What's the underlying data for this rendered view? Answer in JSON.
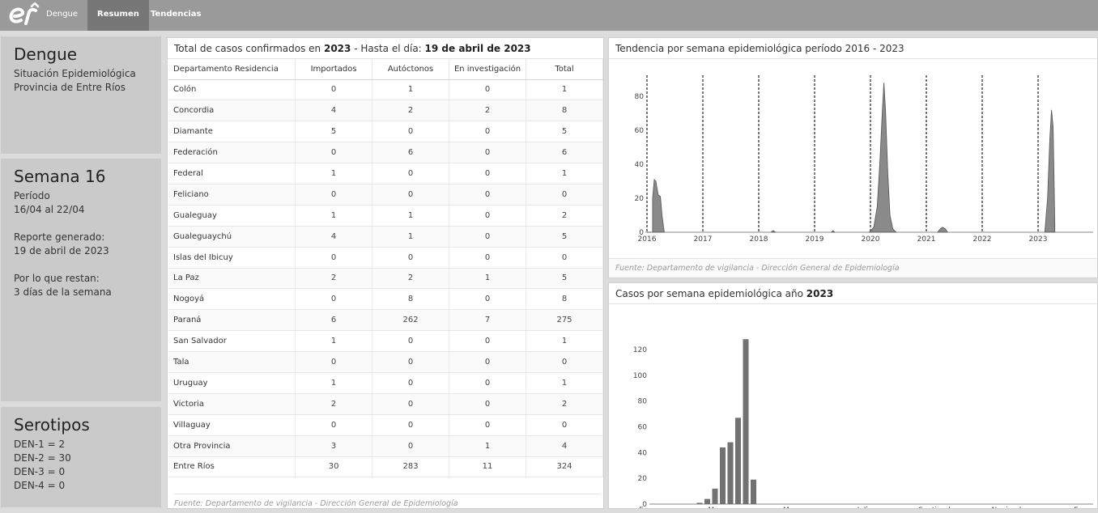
{
  "nav": {
    "brand": "Dengue",
    "tabs": [
      "Resumen",
      "Tendencias"
    ]
  },
  "info": {
    "title": "Dengue",
    "subtitle1": "Situación Epidemiológica",
    "subtitle2": "Provincia de Entre Ríos"
  },
  "week": {
    "title": "Semana 16",
    "period_label": "Período",
    "period_value": "16/04 al 22/04",
    "report_label": "Reporte generado:",
    "report_value": "19 de abril de 2023",
    "remaining_label": "Por lo que restan:",
    "remaining_value": "3 días de la semana"
  },
  "serotypes": {
    "title": "Serotipos",
    "items": [
      "DEN-1 = 2",
      "DEN-2 = 30",
      "DEN-3 = 0",
      "DEN-4 = 0"
    ]
  },
  "table_panel": {
    "title_prefix": "Total de casos confirmados en ",
    "year": "2023",
    "title_mid": " - Hasta el día: ",
    "date": "19 de abril de 2023",
    "footnote": "Fuente: Departamento de vigilancia - Dirección General de Epidemiología",
    "headers": [
      "Departamento Residencia",
      "Importados",
      "Autóctonos",
      "En investigación",
      "Total"
    ],
    "rows": [
      [
        "Colón",
        "0",
        "1",
        "0",
        "1"
      ],
      [
        "Concordia",
        "4",
        "2",
        "2",
        "8"
      ],
      [
        "Diamante",
        "5",
        "0",
        "0",
        "5"
      ],
      [
        "Federación",
        "0",
        "6",
        "0",
        "6"
      ],
      [
        "Federal",
        "1",
        "0",
        "0",
        "1"
      ],
      [
        "Feliciano",
        "0",
        "0",
        "0",
        "0"
      ],
      [
        "Gualeguay",
        "1",
        "1",
        "0",
        "2"
      ],
      [
        "Gualeguaychú",
        "4",
        "1",
        "0",
        "5"
      ],
      [
        "Islas del Ibicuy",
        "0",
        "0",
        "0",
        "0"
      ],
      [
        "La Paz",
        "2",
        "2",
        "1",
        "5"
      ],
      [
        "Nogoyá",
        "0",
        "8",
        "0",
        "8"
      ],
      [
        "Paraná",
        "6",
        "262",
        "7",
        "275"
      ],
      [
        "San Salvador",
        "1",
        "0",
        "0",
        "1"
      ],
      [
        "Tala",
        "0",
        "0",
        "0",
        "0"
      ],
      [
        "Uruguay",
        "1",
        "0",
        "0",
        "1"
      ],
      [
        "Victoria",
        "2",
        "0",
        "0",
        "2"
      ],
      [
        "Villaguay",
        "0",
        "0",
        "0",
        "0"
      ],
      [
        "Otra Provincia",
        "3",
        "0",
        "1",
        "4"
      ],
      [
        "Entre Ríos",
        "30",
        "283",
        "11",
        "324"
      ]
    ]
  },
  "trend_panel": {
    "title": "Tendencia por semana epidemiológica período 2016 - 2023",
    "footnote": "Fuente: Departamento de vigilancia - Dirección General de Epidemiología"
  },
  "weekly_panel": {
    "title_prefix": "Casos por semana epidemiológica año ",
    "year": "2023"
  },
  "chart_data": [
    {
      "type": "area",
      "x_unit": "year",
      "xticks": [
        "2016",
        "2017",
        "2018",
        "2019",
        "2020",
        "2021",
        "2022",
        "2023"
      ],
      "ylim": [
        0,
        90
      ],
      "yticks": [
        0,
        20,
        40,
        60,
        80
      ],
      "year_dividers": [
        2016,
        2017,
        2018,
        2019,
        2020,
        2021,
        2022,
        2023
      ],
      "series": [
        {
          "points": [
            [
              2016.0,
              0
            ],
            [
              2016.08,
              0
            ],
            [
              2016.1,
              20
            ],
            [
              2016.13,
              31
            ],
            [
              2016.16,
              30
            ],
            [
              2016.2,
              22
            ],
            [
              2016.24,
              21
            ],
            [
              2016.27,
              10
            ],
            [
              2016.31,
              0
            ],
            [
              2018.22,
              0
            ],
            [
              2018.26,
              1
            ],
            [
              2018.3,
              0
            ],
            [
              2019.3,
              0
            ],
            [
              2019.33,
              1
            ],
            [
              2019.36,
              0
            ],
            [
              2019.98,
              0
            ],
            [
              2020.06,
              3
            ],
            [
              2020.12,
              15
            ],
            [
              2020.17,
              42
            ],
            [
              2020.21,
              70
            ],
            [
              2020.24,
              88
            ],
            [
              2020.27,
              72
            ],
            [
              2020.31,
              35
            ],
            [
              2020.35,
              10
            ],
            [
              2020.4,
              2
            ],
            [
              2020.46,
              0
            ],
            [
              2021.2,
              0
            ],
            [
              2021.25,
              2
            ],
            [
              2021.29,
              3
            ],
            [
              2021.34,
              2
            ],
            [
              2021.38,
              0
            ],
            [
              2023.12,
              0
            ],
            [
              2023.17,
              20
            ],
            [
              2023.21,
              55
            ],
            [
              2023.24,
              72
            ],
            [
              2023.27,
              62
            ],
            [
              2023.3,
              5
            ]
          ]
        }
      ]
    },
    {
      "type": "bar",
      "xticks": [
        "Enero",
        "Marzo",
        "Mayo",
        "Julio",
        "Septiembre",
        "Noviembre",
        "Enero"
      ],
      "ylim": [
        0,
        130
      ],
      "yticks": [
        0,
        20,
        40,
        60,
        80,
        100,
        120
      ],
      "weeks": [
        6,
        7,
        8,
        9,
        10,
        11,
        12,
        13,
        14,
        15,
        16
      ],
      "values": [
        0,
        0,
        1,
        4,
        12,
        44,
        48,
        67,
        128,
        19,
        0
      ]
    }
  ]
}
